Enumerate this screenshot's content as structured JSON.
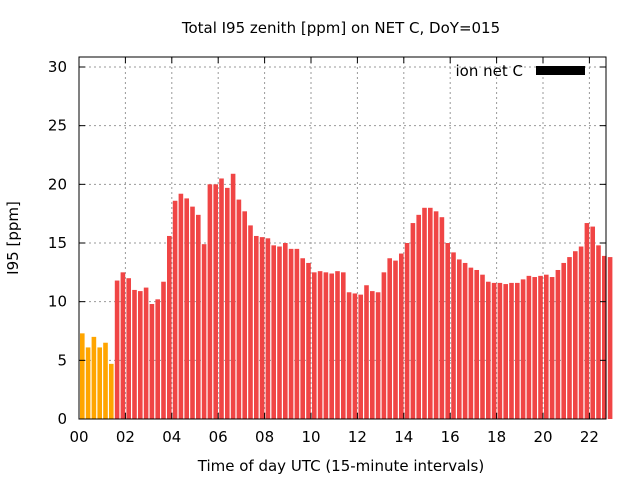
{
  "chart_data": {
    "type": "bar",
    "title": "Total I95 zenith [ppm] on NET C, DoY=015",
    "xlabel": "Time of day UTC (15-minute intervals)",
    "ylabel": "I95 [ppm]",
    "xlim": [
      0,
      22.75
    ],
    "ylim": [
      0,
      30
    ],
    "grid": true,
    "legend": {
      "placement": "top-right",
      "entries": [
        {
          "label": "ion net C",
          "color": "#000000"
        }
      ]
    },
    "x_ticks": [
      "00",
      "02",
      "04",
      "06",
      "08",
      "10",
      "12",
      "14",
      "16",
      "18",
      "20",
      "22"
    ],
    "y_ticks": [
      "0",
      "5",
      "10",
      "15",
      "20",
      "25",
      "30"
    ],
    "interval_hours": 0.25,
    "highlight_count": 6,
    "colors": {
      "highlight": "#ffa500",
      "normal": "#f04545"
    },
    "values": [
      7.3,
      6.1,
      7.0,
      6.1,
      6.5,
      4.7,
      11.8,
      12.5,
      12.0,
      11.0,
      10.9,
      11.2,
      9.8,
      10.2,
      11.7,
      15.6,
      18.6,
      19.2,
      18.8,
      18.1,
      17.4,
      14.9,
      20.0,
      20.0,
      20.5,
      19.7,
      20.9,
      18.7,
      17.7,
      16.5,
      15.6,
      15.5,
      15.4,
      14.8,
      14.7,
      15.0,
      14.5,
      14.5,
      13.7,
      13.3,
      12.5,
      12.6,
      12.5,
      12.4,
      12.6,
      12.5,
      10.8,
      10.7,
      10.6,
      11.4,
      10.9,
      10.8,
      12.5,
      13.7,
      13.5,
      14.1,
      15.0,
      16.7,
      17.4,
      18.0,
      18.0,
      17.7,
      17.2,
      15.0,
      14.2,
      13.6,
      13.3,
      12.9,
      12.7,
      12.3,
      11.7,
      11.6,
      11.6,
      11.5,
      11.6,
      11.6,
      11.9,
      12.2,
      12.1,
      12.2,
      12.3,
      12.1,
      12.7,
      13.3,
      13.8,
      14.3,
      14.7,
      16.7,
      16.4,
      14.8,
      13.9,
      13.8
    ]
  }
}
